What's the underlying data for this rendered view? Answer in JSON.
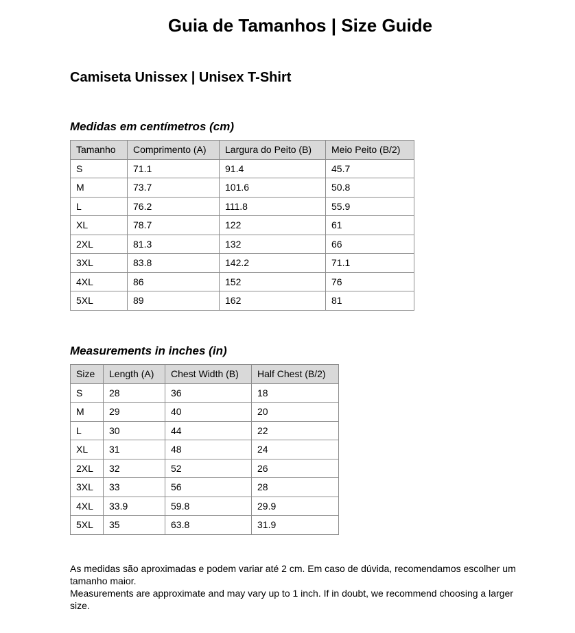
{
  "title": "Guia de Tamanhos | Size Guide",
  "subtitle": "Camiseta Unissex | Unisex T-Shirt",
  "cm_table": {
    "heading": "Medidas em centímetros (cm)",
    "headers": [
      "Tamanho",
      "Comprimento (A)",
      "Largura do Peito (B)",
      "Meio Peito (B/2)"
    ],
    "rows": [
      [
        "S",
        "71.1",
        "91.4",
        "45.7"
      ],
      [
        "M",
        "73.7",
        "101.6",
        "50.8"
      ],
      [
        "L",
        "76.2",
        "111.8",
        "55.9"
      ],
      [
        "XL",
        "78.7",
        "122",
        "61"
      ],
      [
        "2XL",
        "81.3",
        "132",
        "66"
      ],
      [
        "3XL",
        "83.8",
        "142.2",
        "71.1"
      ],
      [
        "4XL",
        "86",
        "152",
        "76"
      ],
      [
        "5XL",
        "89",
        "162",
        "81"
      ]
    ]
  },
  "in_table": {
    "heading": "Measurements in inches (in)",
    "headers": [
      "Size",
      "Length (A)",
      "Chest Width (B)",
      "Half Chest (B/2)"
    ],
    "rows": [
      [
        "S",
        "28",
        "36",
        "18"
      ],
      [
        "M",
        "29",
        "40",
        "20"
      ],
      [
        "L",
        "30",
        "44",
        "22"
      ],
      [
        "XL",
        "31",
        "48",
        "24"
      ],
      [
        "2XL",
        "32",
        "52",
        "26"
      ],
      [
        "3XL",
        "33",
        "56",
        "28"
      ],
      [
        "4XL",
        "33.9",
        "59.8",
        "29.9"
      ],
      [
        "5XL",
        "35",
        "63.8",
        "31.9"
      ]
    ]
  },
  "notes": [
    "As medidas são aproximadas e podem variar até 2 cm. Em caso de dúvida, recomendamos escolher um tamanho maior.",
    "Measurements are approximate and may vary up to 1 inch. If in doubt, we recommend choosing a larger size."
  ],
  "colors": {
    "header_bg": "#d9d9d9",
    "border": "#8c8c8c"
  }
}
